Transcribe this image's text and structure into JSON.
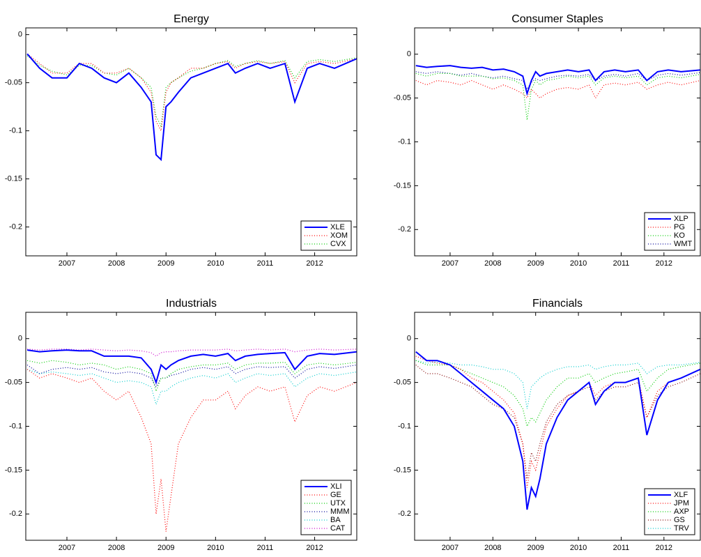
{
  "chart_data": [
    {
      "type": "line",
      "title": "Energy",
      "x": [
        2006.2,
        2006.45,
        2006.7,
        2007.0,
        2007.25,
        2007.5,
        2007.75,
        2008.0,
        2008.25,
        2008.5,
        2008.7,
        2008.8,
        2008.9,
        2009.0,
        2009.1,
        2009.25,
        2009.5,
        2009.75,
        2010.0,
        2010.25,
        2010.4,
        2010.6,
        2010.85,
        2011.1,
        2011.4,
        2011.6,
        2011.85,
        2012.1,
        2012.4,
        2012.85
      ],
      "xlim": [
        2006.17,
        2012.85
      ],
      "xticks": [
        2007,
        2008,
        2009,
        2010,
        2011,
        2012
      ],
      "ylim": [
        -0.23,
        0.007
      ],
      "yticks": [
        -0.2,
        -0.15,
        -0.1,
        -0.05,
        0
      ],
      "legend": "lower right",
      "series": [
        {
          "name": "XLE",
          "color": "#0000ff",
          "linestyle": "solid",
          "values": [
            -0.02,
            -0.035,
            -0.045,
            -0.045,
            -0.03,
            -0.035,
            -0.045,
            -0.05,
            -0.04,
            -0.055,
            -0.07,
            -0.125,
            -0.13,
            -0.075,
            -0.07,
            -0.06,
            -0.045,
            -0.04,
            -0.035,
            -0.03,
            -0.04,
            -0.035,
            -0.03,
            -0.035,
            -0.03,
            -0.07,
            -0.035,
            -0.03,
            -0.035,
            -0.025
          ]
        },
        {
          "name": "XOM",
          "color": "#ff0000",
          "linestyle": "dotted",
          "values": [
            -0.02,
            -0.03,
            -0.04,
            -0.04,
            -0.03,
            -0.03,
            -0.04,
            -0.04,
            -0.035,
            -0.045,
            -0.06,
            -0.09,
            -0.1,
            -0.06,
            -0.05,
            -0.045,
            -0.035,
            -0.035,
            -0.03,
            -0.028,
            -0.035,
            -0.03,
            -0.028,
            -0.03,
            -0.028,
            -0.05,
            -0.03,
            -0.028,
            -0.03,
            -0.025
          ]
        },
        {
          "name": "CVX",
          "color": "#00cc00",
          "linestyle": "dotted",
          "values": [
            -0.022,
            -0.032,
            -0.038,
            -0.042,
            -0.032,
            -0.032,
            -0.04,
            -0.042,
            -0.035,
            -0.045,
            -0.055,
            -0.085,
            -0.095,
            -0.055,
            -0.05,
            -0.045,
            -0.038,
            -0.035,
            -0.03,
            -0.027,
            -0.033,
            -0.03,
            -0.027,
            -0.03,
            -0.027,
            -0.045,
            -0.028,
            -0.026,
            -0.028,
            -0.024
          ]
        }
      ]
    },
    {
      "type": "line",
      "title": "Consumer Staples",
      "x": [
        2006.2,
        2006.45,
        2006.7,
        2007.0,
        2007.25,
        2007.5,
        2007.75,
        2008.0,
        2008.25,
        2008.5,
        2008.7,
        2008.8,
        2008.9,
        2009.0,
        2009.1,
        2009.25,
        2009.5,
        2009.75,
        2010.0,
        2010.25,
        2010.4,
        2010.6,
        2010.85,
        2011.1,
        2011.4,
        2011.6,
        2011.85,
        2012.1,
        2012.4,
        2012.85
      ],
      "xlim": [
        2006.17,
        2012.85
      ],
      "xticks": [
        2007,
        2008,
        2009,
        2010,
        2011,
        2012
      ],
      "ylim": [
        -0.23,
        0.03
      ],
      "yticks": [
        -0.2,
        -0.15,
        -0.1,
        -0.05,
        0
      ],
      "legend": "lower right",
      "series": [
        {
          "name": "XLP",
          "color": "#0000ff",
          "linestyle": "solid",
          "values": [
            -0.013,
            -0.015,
            -0.014,
            -0.013,
            -0.015,
            -0.016,
            -0.015,
            -0.018,
            -0.017,
            -0.02,
            -0.025,
            -0.045,
            -0.03,
            -0.02,
            -0.025,
            -0.022,
            -0.02,
            -0.018,
            -0.02,
            -0.018,
            -0.03,
            -0.02,
            -0.018,
            -0.02,
            -0.018,
            -0.03,
            -0.02,
            -0.018,
            -0.02,
            -0.018
          ]
        },
        {
          "name": "PG",
          "color": "#ff0000",
          "linestyle": "dotted",
          "values": [
            -0.03,
            -0.035,
            -0.03,
            -0.032,
            -0.035,
            -0.03,
            -0.035,
            -0.04,
            -0.035,
            -0.04,
            -0.045,
            -0.05,
            -0.04,
            -0.045,
            -0.05,
            -0.045,
            -0.04,
            -0.038,
            -0.04,
            -0.035,
            -0.05,
            -0.035,
            -0.033,
            -0.035,
            -0.032,
            -0.04,
            -0.035,
            -0.032,
            -0.035,
            -0.03
          ]
        },
        {
          "name": "KO",
          "color": "#00cc00",
          "linestyle": "dotted",
          "values": [
            -0.022,
            -0.025,
            -0.022,
            -0.022,
            -0.025,
            -0.025,
            -0.025,
            -0.028,
            -0.027,
            -0.03,
            -0.035,
            -0.075,
            -0.04,
            -0.03,
            -0.035,
            -0.03,
            -0.028,
            -0.025,
            -0.027,
            -0.025,
            -0.035,
            -0.027,
            -0.025,
            -0.027,
            -0.025,
            -0.035,
            -0.027,
            -0.025,
            -0.027,
            -0.023
          ]
        },
        {
          "name": "WMT",
          "color": "#000099",
          "linestyle": "dotted",
          "values": [
            -0.02,
            -0.022,
            -0.02,
            -0.022,
            -0.024,
            -0.022,
            -0.025,
            -0.027,
            -0.025,
            -0.028,
            -0.03,
            -0.04,
            -0.032,
            -0.028,
            -0.03,
            -0.028,
            -0.025,
            -0.024,
            -0.025,
            -0.023,
            -0.03,
            -0.025,
            -0.023,
            -0.025,
            -0.022,
            -0.03,
            -0.024,
            -0.022,
            -0.024,
            -0.021
          ]
        }
      ]
    },
    {
      "type": "line",
      "title": "Industrials",
      "x": [
        2006.2,
        2006.45,
        2006.7,
        2007.0,
        2007.25,
        2007.5,
        2007.75,
        2008.0,
        2008.25,
        2008.5,
        2008.7,
        2008.8,
        2008.9,
        2009.0,
        2009.1,
        2009.25,
        2009.5,
        2009.75,
        2010.0,
        2010.25,
        2010.4,
        2010.6,
        2010.85,
        2011.1,
        2011.4,
        2011.6,
        2011.85,
        2012.1,
        2012.4,
        2012.85
      ],
      "xlim": [
        2006.17,
        2012.85
      ],
      "xticks": [
        2007,
        2008,
        2009,
        2010,
        2011,
        2012
      ],
      "ylim": [
        -0.23,
        0.03
      ],
      "yticks": [
        -0.2,
        -0.15,
        -0.1,
        -0.05,
        0
      ],
      "legend": "lower right",
      "series": [
        {
          "name": "XLI",
          "color": "#0000ff",
          "linestyle": "solid",
          "values": [
            -0.013,
            -0.015,
            -0.014,
            -0.013,
            -0.014,
            -0.014,
            -0.02,
            -0.02,
            -0.02,
            -0.022,
            -0.035,
            -0.05,
            -0.03,
            -0.035,
            -0.03,
            -0.025,
            -0.02,
            -0.018,
            -0.02,
            -0.017,
            -0.025,
            -0.02,
            -0.018,
            -0.017,
            -0.016,
            -0.035,
            -0.02,
            -0.017,
            -0.018,
            -0.015
          ]
        },
        {
          "name": "GE",
          "color": "#ff0000",
          "linestyle": "dotted",
          "values": [
            -0.035,
            -0.045,
            -0.04,
            -0.045,
            -0.05,
            -0.045,
            -0.06,
            -0.07,
            -0.06,
            -0.09,
            -0.12,
            -0.2,
            -0.16,
            -0.22,
            -0.18,
            -0.12,
            -0.09,
            -0.07,
            -0.07,
            -0.06,
            -0.08,
            -0.065,
            -0.055,
            -0.06,
            -0.055,
            -0.095,
            -0.065,
            -0.055,
            -0.06,
            -0.05
          ]
        },
        {
          "name": "UTX",
          "color": "#00cc00",
          "linestyle": "dotted",
          "values": [
            -0.025,
            -0.028,
            -0.025,
            -0.027,
            -0.03,
            -0.028,
            -0.03,
            -0.035,
            -0.032,
            -0.035,
            -0.04,
            -0.06,
            -0.045,
            -0.045,
            -0.04,
            -0.035,
            -0.032,
            -0.03,
            -0.03,
            -0.028,
            -0.035,
            -0.03,
            -0.028,
            -0.028,
            -0.027,
            -0.04,
            -0.03,
            -0.028,
            -0.03,
            -0.027
          ]
        },
        {
          "name": "MMM",
          "color": "#000099",
          "linestyle": "dotted",
          "values": [
            -0.03,
            -0.04,
            -0.035,
            -0.033,
            -0.035,
            -0.033,
            -0.038,
            -0.04,
            -0.038,
            -0.04,
            -0.045,
            -0.055,
            -0.045,
            -0.045,
            -0.042,
            -0.04,
            -0.035,
            -0.033,
            -0.035,
            -0.032,
            -0.04,
            -0.035,
            -0.032,
            -0.033,
            -0.032,
            -0.045,
            -0.035,
            -0.032,
            -0.034,
            -0.03
          ]
        },
        {
          "name": "BA",
          "color": "#00cccc",
          "linestyle": "dotted",
          "values": [
            -0.035,
            -0.04,
            -0.038,
            -0.04,
            -0.042,
            -0.04,
            -0.045,
            -0.05,
            -0.048,
            -0.05,
            -0.055,
            -0.075,
            -0.06,
            -0.06,
            -0.055,
            -0.05,
            -0.045,
            -0.042,
            -0.045,
            -0.04,
            -0.05,
            -0.045,
            -0.04,
            -0.042,
            -0.04,
            -0.055,
            -0.045,
            -0.04,
            -0.042,
            -0.038
          ]
        },
        {
          "name": "CAT",
          "color": "#cc00cc",
          "linestyle": "dotted",
          "values": [
            -0.012,
            -0.013,
            -0.012,
            -0.012,
            -0.013,
            -0.012,
            -0.013,
            -0.014,
            -0.013,
            -0.014,
            -0.016,
            -0.02,
            -0.016,
            -0.015,
            -0.015,
            -0.014,
            -0.013,
            -0.013,
            -0.013,
            -0.012,
            -0.014,
            -0.013,
            -0.012,
            -0.013,
            -0.012,
            -0.015,
            -0.013,
            -0.012,
            -0.013,
            -0.012
          ]
        }
      ]
    },
    {
      "type": "line",
      "title": "Financials",
      "x": [
        2006.2,
        2006.45,
        2006.7,
        2007.0,
        2007.25,
        2007.5,
        2007.75,
        2008.0,
        2008.25,
        2008.5,
        2008.7,
        2008.8,
        2008.9,
        2009.0,
        2009.1,
        2009.25,
        2009.5,
        2009.75,
        2010.0,
        2010.25,
        2010.4,
        2010.6,
        2010.85,
        2011.1,
        2011.4,
        2011.6,
        2011.85,
        2012.1,
        2012.4,
        2012.85
      ],
      "xlim": [
        2006.17,
        2012.85
      ],
      "xticks": [
        2007,
        2008,
        2009,
        2010,
        2011,
        2012
      ],
      "ylim": [
        -0.23,
        0.03
      ],
      "yticks": [
        -0.2,
        -0.15,
        -0.1,
        -0.05,
        0
      ],
      "legend": "lower right",
      "series": [
        {
          "name": "XLF",
          "color": "#0000ff",
          "linestyle": "solid",
          "values": [
            -0.015,
            -0.025,
            -0.025,
            -0.03,
            -0.04,
            -0.05,
            -0.06,
            -0.07,
            -0.08,
            -0.1,
            -0.14,
            -0.195,
            -0.17,
            -0.18,
            -0.16,
            -0.12,
            -0.09,
            -0.07,
            -0.06,
            -0.05,
            -0.075,
            -0.06,
            -0.05,
            -0.05,
            -0.045,
            -0.11,
            -0.07,
            -0.05,
            -0.045,
            -0.035
          ]
        },
        {
          "name": "JPM",
          "color": "#ff0000",
          "linestyle": "dotted",
          "values": [
            -0.02,
            -0.025,
            -0.028,
            -0.03,
            -0.035,
            -0.045,
            -0.05,
            -0.06,
            -0.07,
            -0.085,
            -0.12,
            -0.17,
            -0.14,
            -0.15,
            -0.13,
            -0.1,
            -0.08,
            -0.065,
            -0.06,
            -0.05,
            -0.065,
            -0.055,
            -0.05,
            -0.05,
            -0.045,
            -0.09,
            -0.06,
            -0.05,
            -0.045,
            -0.035
          ]
        },
        {
          "name": "AXP",
          "color": "#00cc00",
          "linestyle": "dotted",
          "values": [
            -0.025,
            -0.03,
            -0.03,
            -0.03,
            -0.035,
            -0.04,
            -0.045,
            -0.05,
            -0.055,
            -0.065,
            -0.08,
            -0.1,
            -0.09,
            -0.095,
            -0.085,
            -0.07,
            -0.055,
            -0.045,
            -0.045,
            -0.04,
            -0.05,
            -0.045,
            -0.04,
            -0.038,
            -0.035,
            -0.06,
            -0.045,
            -0.035,
            -0.032,
            -0.028
          ]
        },
        {
          "name": "GS",
          "color": "#800000",
          "linestyle": "dotted",
          "values": [
            -0.03,
            -0.04,
            -0.04,
            -0.045,
            -0.05,
            -0.055,
            -0.065,
            -0.075,
            -0.08,
            -0.09,
            -0.12,
            -0.16,
            -0.13,
            -0.14,
            -0.12,
            -0.095,
            -0.075,
            -0.065,
            -0.06,
            -0.055,
            -0.07,
            -0.06,
            -0.055,
            -0.055,
            -0.05,
            -0.09,
            -0.065,
            -0.055,
            -0.05,
            -0.04
          ]
        },
        {
          "name": "TRV",
          "color": "#00cccc",
          "linestyle": "dotted",
          "values": [
            -0.025,
            -0.028,
            -0.027,
            -0.028,
            -0.03,
            -0.03,
            -0.032,
            -0.035,
            -0.035,
            -0.04,
            -0.05,
            -0.08,
            -0.055,
            -0.05,
            -0.045,
            -0.04,
            -0.035,
            -0.032,
            -0.032,
            -0.03,
            -0.035,
            -0.032,
            -0.03,
            -0.03,
            -0.028,
            -0.04,
            -0.032,
            -0.03,
            -0.03,
            -0.027
          ]
        }
      ]
    }
  ]
}
